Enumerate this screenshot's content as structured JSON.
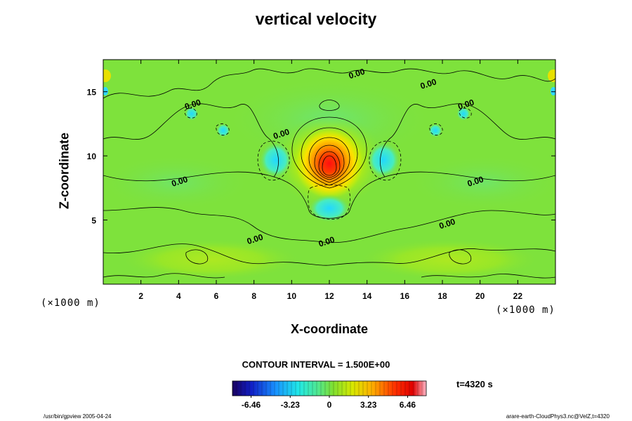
{
  "chart_data": {
    "type": "heatmap",
    "title": "vertical velocity",
    "xlabel": "X-coordinate",
    "ylabel": "Z-coordinate",
    "x_unit": "(×1000 m)",
    "y_unit": "(×1000 m)",
    "xlim": [
      0,
      24
    ],
    "ylim": [
      0,
      17.5
    ],
    "x_ticks": [
      "2",
      "4",
      "6",
      "8",
      "10",
      "12",
      "14",
      "16",
      "18",
      "20",
      "22"
    ],
    "y_ticks": [
      "5",
      "10",
      "15"
    ],
    "contour_interval_label": "CONTOUR INTERVAL = 1.500E+00",
    "time_label": "t=4320 s",
    "colorbar": {
      "ticks": [
        "-6.46",
        "-3.23",
        "0",
        "3.23",
        "6.46"
      ],
      "range": [
        -8,
        8
      ]
    },
    "contour_labels": [
      {
        "text": "0.00",
        "x": 13.5,
        "y": 16.2
      },
      {
        "text": "0.00",
        "x": 17.3,
        "y": 15.4
      },
      {
        "text": "0.00",
        "x": 4.8,
        "y": 13.8
      },
      {
        "text": "0.00",
        "x": 19.3,
        "y": 13.8
      },
      {
        "text": "0.00",
        "x": 9.5,
        "y": 11.5
      },
      {
        "text": "0.00",
        "x": 4.1,
        "y": 7.8
      },
      {
        "text": "0.00",
        "x": 19.8,
        "y": 7.8
      },
      {
        "text": "0.00",
        "x": 18.3,
        "y": 4.5
      },
      {
        "text": "0.00",
        "x": 8.1,
        "y": 3.3
      },
      {
        "text": "0.00",
        "x": 11.9,
        "y": 3.1
      }
    ],
    "features": [
      {
        "kind": "updraft",
        "x": 12.0,
        "z": 9.2,
        "peak": 6.5
      },
      {
        "kind": "downdraft",
        "x": 12.0,
        "z": 6.2,
        "peak": -3.2
      },
      {
        "kind": "downdraft",
        "x": 9.2,
        "z": 9.8,
        "peak": -2.5
      },
      {
        "kind": "downdraft",
        "x": 14.9,
        "z": 9.8,
        "peak": -2.5
      }
    ]
  },
  "footer_left": "/usr/bin/gpview 2005-04-24",
  "footer_right": "arare-earth-CloudPhys3.nc@VelZ,t=4320"
}
